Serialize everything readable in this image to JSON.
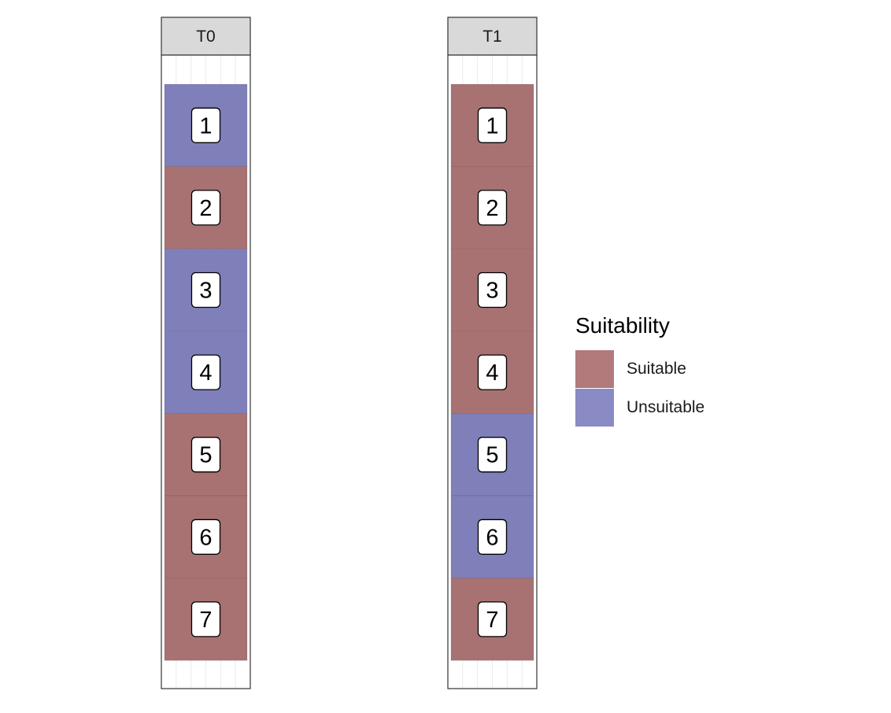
{
  "chart_data": {
    "type": "heatmap",
    "facets": [
      {
        "label": "T0",
        "tiles": [
          {
            "label": "1",
            "suitability": "Unsuitable"
          },
          {
            "label": "2",
            "suitability": "Suitable"
          },
          {
            "label": "3",
            "suitability": "Unsuitable"
          },
          {
            "label": "4",
            "suitability": "Unsuitable"
          },
          {
            "label": "5",
            "suitability": "Suitable"
          },
          {
            "label": "6",
            "suitability": "Suitable"
          },
          {
            "label": "7",
            "suitability": "Suitable"
          }
        ]
      },
      {
        "label": "T1",
        "tiles": [
          {
            "label": "1",
            "suitability": "Suitable"
          },
          {
            "label": "2",
            "suitability": "Suitable"
          },
          {
            "label": "3",
            "suitability": "Suitable"
          },
          {
            "label": "4",
            "suitability": "Suitable"
          },
          {
            "label": "5",
            "suitability": "Unsuitable"
          },
          {
            "label": "6",
            "suitability": "Unsuitable"
          },
          {
            "label": "7",
            "suitability": "Suitable"
          }
        ]
      }
    ],
    "legend": {
      "title": "Suitability",
      "position": "right",
      "items": [
        {
          "label": "Suitable",
          "color": "#a87272"
        },
        {
          "label": "Unsuitable",
          "color": "#7f7fba"
        }
      ]
    },
    "grid": true
  }
}
